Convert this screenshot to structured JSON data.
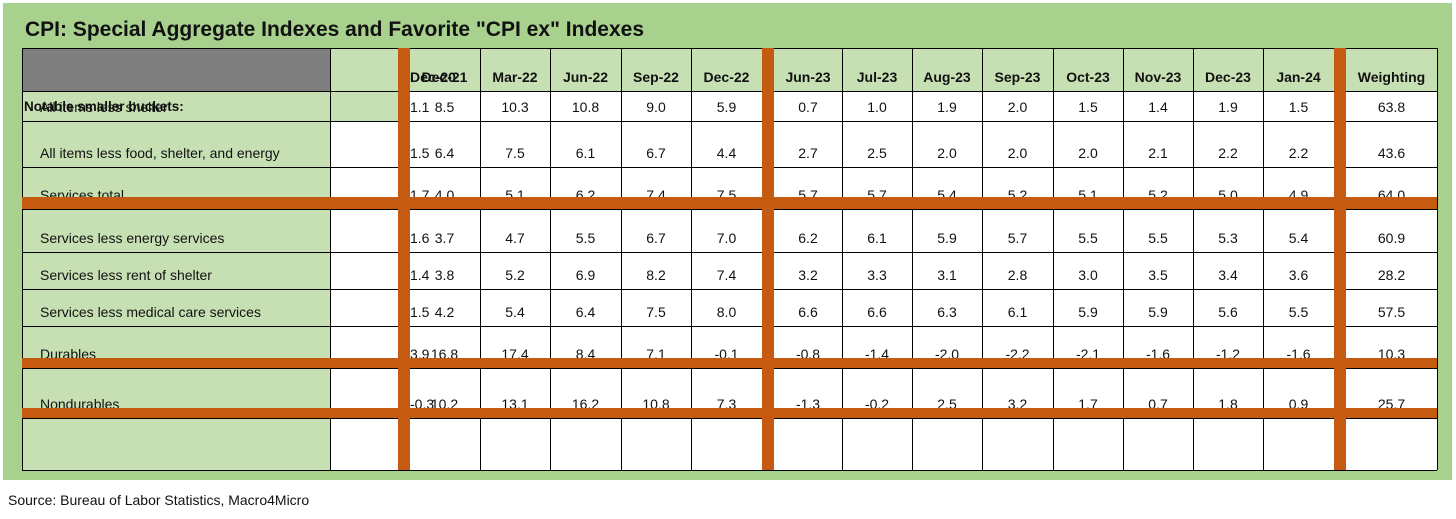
{
  "title": "CPI: Special Aggregate Indexes and Favorite \"CPI ex\" Indexes",
  "source": "Source: Bureau of Labor Statistics, Macro4Micro",
  "colors": {
    "panel": "#a9d18e",
    "label_cell": "#c6e0b4",
    "header_block": "#7f7f7f",
    "separator": "#c55a11",
    "gray_band": "#d0cece"
  },
  "chart_data": {
    "type": "table",
    "columns": [
      "Dec-20",
      "Dec-21",
      "Mar-22",
      "Jun-22",
      "Sep-22",
      "Dec-22",
      "Jun-23",
      "Jul-23",
      "Aug-23",
      "Sep-23",
      "Oct-23",
      "Nov-23",
      "Dec-23",
      "Jan-24",
      "Weighting"
    ],
    "section_label": "Notable smaller buckets:",
    "rows": [
      {
        "label": "All items less shelter",
        "values": [
          "1.1",
          "8.5",
          "10.3",
          "10.8",
          "9.0",
          "5.9",
          "0.7",
          "1.0",
          "1.9",
          "2.0",
          "1.5",
          "1.4",
          "1.9",
          "1.5",
          "63.8"
        ]
      },
      {
        "label": "All items less food, shelter, and energy",
        "values": [
          "1.5",
          "6.4",
          "7.5",
          "6.1",
          "6.7",
          "4.4",
          "2.7",
          "2.5",
          "2.0",
          "2.0",
          "2.0",
          "2.1",
          "2.2",
          "2.2",
          "43.6"
        ]
      },
      {
        "label": "Services total",
        "values": [
          "1.7",
          "4.0",
          "5.1",
          "6.2",
          "7.4",
          "7.5",
          "5.7",
          "5.7",
          "5.4",
          "5.2",
          "5.1",
          "5.2",
          "5.0",
          "4.9",
          "64.0"
        ]
      },
      {
        "label": "Services less energy services",
        "values": [
          "1.6",
          "3.7",
          "4.7",
          "5.5",
          "6.7",
          "7.0",
          "6.2",
          "6.1",
          "5.9",
          "5.7",
          "5.5",
          "5.5",
          "5.3",
          "5.4",
          "60.9"
        ]
      },
      {
        "label": "Services less rent of shelter",
        "values": [
          "1.4",
          "3.8",
          "5.2",
          "6.9",
          "8.2",
          "7.4",
          "3.2",
          "3.3",
          "3.1",
          "2.8",
          "3.0",
          "3.5",
          "3.4",
          "3.6",
          "28.2"
        ]
      },
      {
        "label": "Services less medical care services",
        "values": [
          "1.5",
          "4.2",
          "5.4",
          "6.4",
          "7.5",
          "8.0",
          "6.6",
          "6.6",
          "6.3",
          "6.1",
          "5.9",
          "5.9",
          "5.6",
          "5.5",
          "57.5"
        ]
      },
      {
        "label": "Durables",
        "values": [
          "3.9",
          "16.8",
          "17.4",
          "8.4",
          "7.1",
          "-0.1",
          "-0.8",
          "-1.4",
          "-2.0",
          "-2.2",
          "-2.1",
          "-1.6",
          "-1.2",
          "-1.6",
          "10.3"
        ]
      },
      {
        "label": "Nondurables",
        "values": [
          "-0.3",
          "10.2",
          "13.1",
          "16.2",
          "10.8",
          "7.3",
          "-1.3",
          "-0.2",
          "2.5",
          "3.2",
          "1.7",
          "0.7",
          "1.8",
          "0.9",
          "25.7"
        ]
      }
    ]
  }
}
